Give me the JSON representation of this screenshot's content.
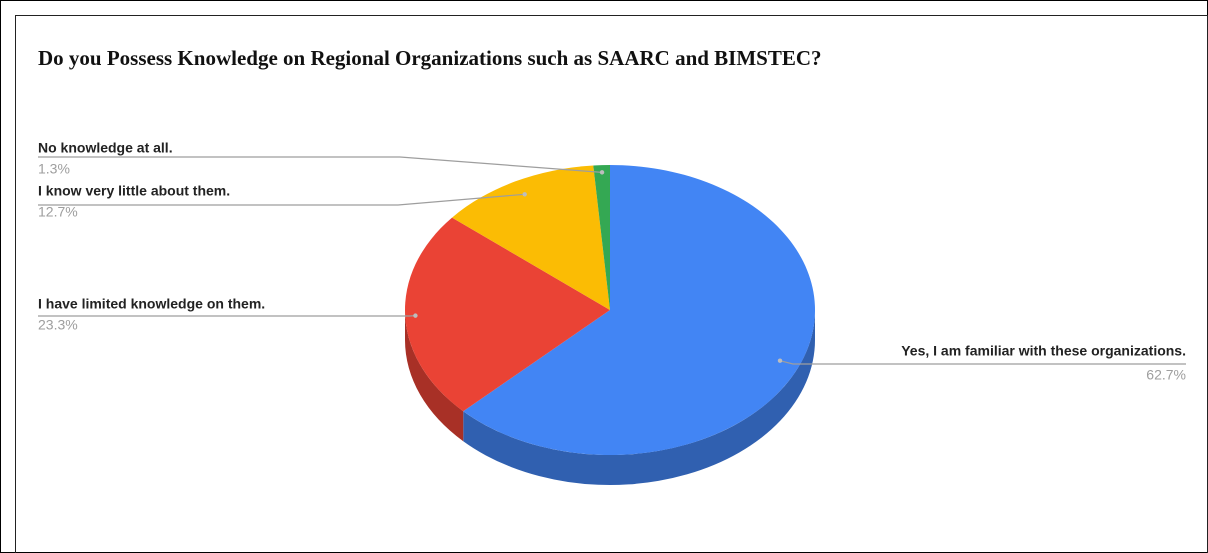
{
  "chart_data": {
    "type": "pie3d",
    "title": "Do you Possess Knowledge on Regional Organizations such as SAARC and BIMSTEC?",
    "categories": [
      "Yes, I am familiar with these organizations.",
      "I have limited knowledge on them.",
      "I know very little about them.",
      "No knowledge at all."
    ],
    "values": [
      62.7,
      23.3,
      12.7,
      1.3
    ],
    "value_labels": [
      "62.7%",
      "23.3%",
      "12.7%",
      "1.3%"
    ],
    "colors": [
      "#4285f4",
      "#ea4335",
      "#fbbc04",
      "#34a853"
    ]
  }
}
